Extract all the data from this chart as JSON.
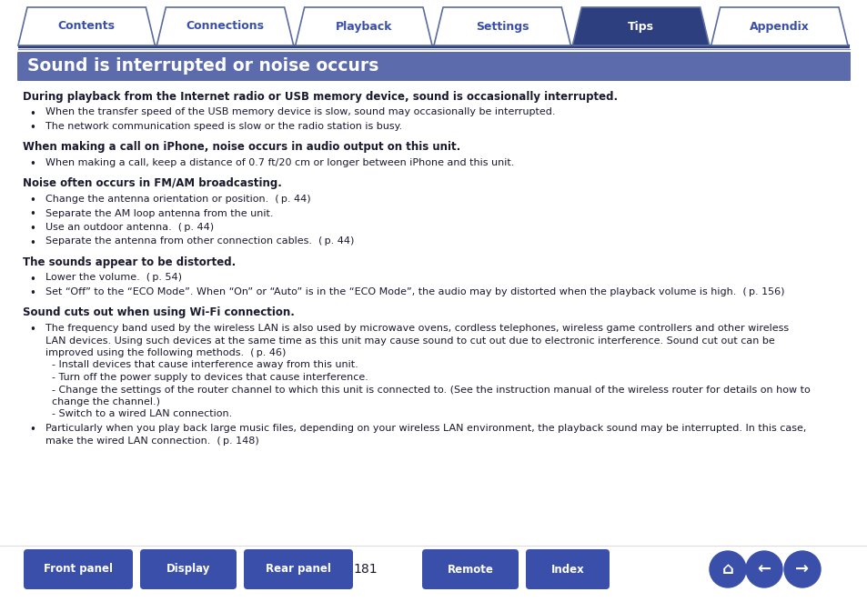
{
  "title": "Sound is interrupted or noise occurs",
  "title_bg_color": "#5b6bab",
  "title_text_color": "#ffffff",
  "body_text_color": "#1a1a2e",
  "bg_color": "#ffffff",
  "tab_labels": [
    "Contents",
    "Connections",
    "Playback",
    "Settings",
    "Tips",
    "Appendix"
  ],
  "active_tab": "Tips",
  "active_tab_bg": "#2e3f7f",
  "active_tab_text": "#ffffff",
  "inactive_tab_bg": "#ffffff",
  "inactive_tab_text": "#3a4faa",
  "tab_border_color": "#5a6ca0",
  "nav_line_color": "#2e3f7f",
  "bottom_buttons": [
    "Front panel",
    "Display",
    "Rear panel",
    "Remote",
    "Index"
  ],
  "page_number": "181",
  "button_color": "#3a4faa",
  "sections": [
    {
      "heading": "During playback from the Internet radio or USB memory device, sound is occasionally interrupted.",
      "bullets": [
        "When the transfer speed of the USB memory device is slow, sound may occasionally be interrupted.",
        "The network communication speed is slow or the radio station is busy."
      ]
    },
    {
      "heading": "When making a call on iPhone, noise occurs in audio output on this unit.",
      "bullets": [
        "When making a call, keep a distance of 0.7 ft/20 cm or longer between iPhone and this unit."
      ]
    },
    {
      "heading": "Noise often occurs in FM/AM broadcasting.",
      "bullets": [
        "Change the antenna orientation or position.  ( p. 44)",
        "Separate the AM loop antenna from the unit.",
        "Use an outdoor antenna.  ( p. 44)",
        "Separate the antenna from other connection cables.  ( p. 44)"
      ]
    },
    {
      "heading": "The sounds appear to be distorted.",
      "bullets": [
        "Lower the volume.  ( p. 54)",
        "Set “Off” to the “ECO Mode”. When “On” or “Auto” is in the “ECO Mode”, the audio may by distorted when the playback volume is high.  ( p. 156)"
      ]
    },
    {
      "heading": "Sound cuts out when using Wi-Fi connection.",
      "bullets": [
        [
          "The frequency band used by the wireless LAN is also used by microwave ovens, cordless telephones, wireless game controllers and other wireless",
          "LAN devices. Using such devices at the same time as this unit may cause sound to cut out due to electronic interference. Sound cut out can be",
          "improved using the following methods.  ( p. 46)",
          "  - Install devices that cause interference away from this unit.",
          "  - Turn off the power supply to devices that cause interference.",
          "  - Change the settings of the router channel to which this unit is connected to. (See the instruction manual of the wireless router for details on how to",
          "  change the channel.)",
          "  - Switch to a wired LAN connection."
        ],
        [
          "Particularly when you play back large music files, depending on your wireless LAN environment, the playback sound may be interrupted. In this case,",
          "make the wired LAN connection.  ( p. 148)"
        ]
      ]
    }
  ]
}
